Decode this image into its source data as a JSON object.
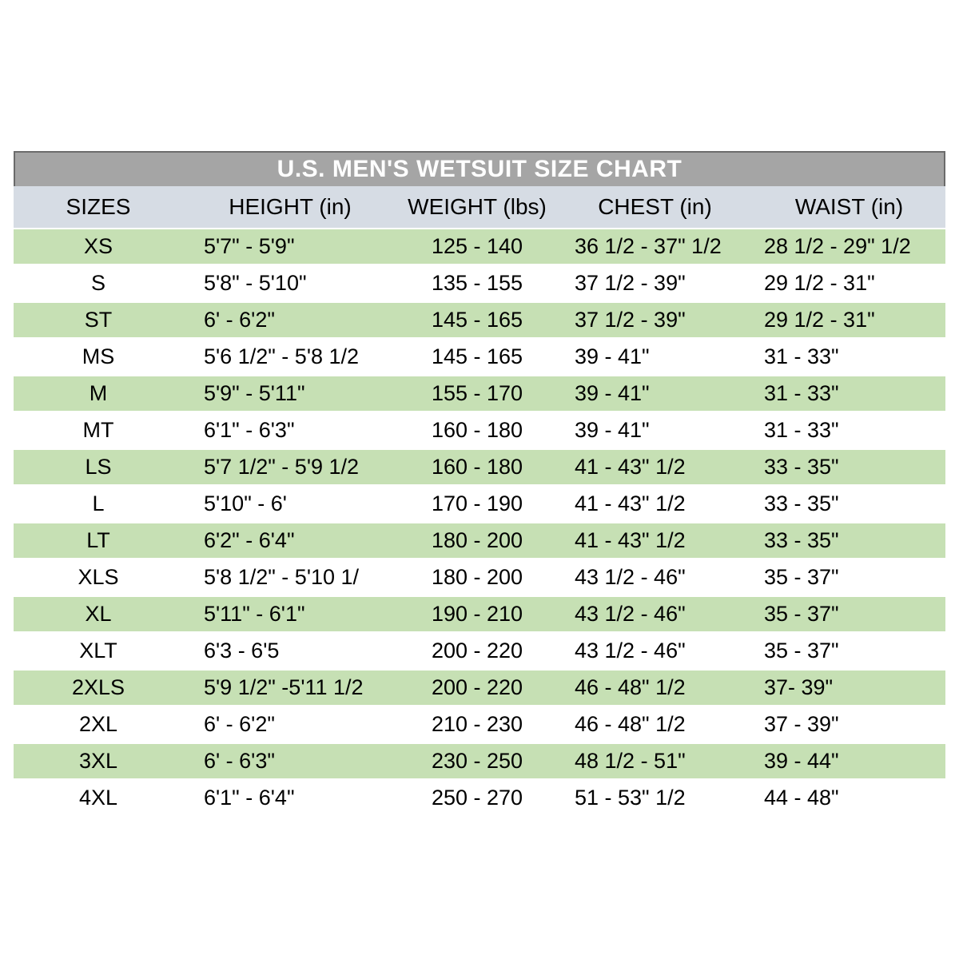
{
  "chart_data": {
    "type": "table",
    "title": "U.S. MEN'S WETSUIT SIZE CHART",
    "columns": [
      "SIZES",
      "HEIGHT (in)",
      "WEIGHT (lbs)",
      "CHEST (in)",
      "WAIST (in)"
    ],
    "rows": [
      {
        "size": "XS",
        "height": "5'7\" - 5'9\"",
        "weight": "125 - 140",
        "chest": "36 1/2 - 37\" 1/2",
        "waist": "28 1/2 - 29\" 1/2",
        "shaded": true
      },
      {
        "size": "S",
        "height": "5'8\" - 5'10\"",
        "weight": "135 - 155",
        "chest": "37 1/2 - 39\"",
        "waist": "29 1/2 - 31\"",
        "shaded": false
      },
      {
        "size": "ST",
        "height": "6' - 6'2\"",
        "weight": "145 - 165",
        "chest": "37 1/2 - 39\"",
        "waist": "29 1/2 - 31\"",
        "shaded": true
      },
      {
        "size": "MS",
        "height": "5'6 1/2\" - 5'8 1/2",
        "weight": "145 - 165",
        "chest": "39 - 41\"",
        "waist": "31 - 33\"",
        "shaded": false
      },
      {
        "size": "M",
        "height": "5'9\" - 5'11\"",
        "weight": "155 - 170",
        "chest": "39 - 41\"",
        "waist": "31 - 33\"",
        "shaded": true
      },
      {
        "size": "MT",
        "height": "6'1\" - 6'3\"",
        "weight": "160 - 180",
        "chest": "39 - 41\"",
        "waist": "31 - 33\"",
        "shaded": false
      },
      {
        "size": "LS",
        "height": "5'7 1/2\" - 5'9 1/2",
        "weight": "160 - 180",
        "chest": "41 - 43\" 1/2",
        "waist": "33 - 35\"",
        "shaded": true
      },
      {
        "size": "L",
        "height": "5'10\" - 6'",
        "weight": "170 - 190",
        "chest": "41 - 43\" 1/2",
        "waist": "33 - 35\"",
        "shaded": false
      },
      {
        "size": "LT",
        "height": "6'2\" - 6'4\"",
        "weight": "180 - 200",
        "chest": "41 - 43\" 1/2",
        "waist": "33 - 35\"",
        "shaded": true
      },
      {
        "size": "XLS",
        "height": "5'8 1/2\" - 5'10 1/",
        "weight": "180 - 200",
        "chest": "43 1/2 - 46\"",
        "waist": "35 - 37\"",
        "shaded": false
      },
      {
        "size": "XL",
        "height": "5'11\" - 6'1\"",
        "weight": "190 - 210",
        "chest": "43 1/2 - 46\"",
        "waist": "35 - 37\"",
        "shaded": true
      },
      {
        "size": "XLT",
        "height": "6'3 - 6'5",
        "weight": "200 - 220",
        "chest": "43 1/2 - 46\"",
        "waist": "35 - 37\"",
        "shaded": false
      },
      {
        "size": "2XLS",
        "height": "5'9 1/2\" -5'11 1/2",
        "weight": "200 - 220",
        "chest": "46 - 48\" 1/2",
        "waist": "37- 39\"",
        "shaded": true
      },
      {
        "size": "2XL",
        "height": "6' - 6'2\"",
        "weight": "210 - 230",
        "chest": "46 - 48\" 1/2",
        "waist": "37 - 39\"",
        "shaded": false
      },
      {
        "size": "3XL",
        "height": "6' - 6'3\"",
        "weight": "230 - 250",
        "chest": "48 1/2 - 51\"",
        "waist": "39 - 44\"",
        "shaded": true
      },
      {
        "size": "4XL",
        "height": "6'1\" - 6'4\"",
        "weight": "250 - 270",
        "chest": "51 - 53\" 1/2",
        "waist": "44 - 48\"",
        "shaded": false
      }
    ],
    "layout": {
      "grid": false,
      "row_banding": "alternating green/white, starting green"
    }
  },
  "colors": {
    "title_bar_bg": "#a5a5a5",
    "title_bar_border": "#6b6b6b",
    "title_text": "#ffffff",
    "header_row_bg": "#d6dce4",
    "shaded_row_bg": "#c6e0b4",
    "plain_row_bg": "#ffffff",
    "text": "#000000",
    "page_bg": "#ffffff"
  }
}
